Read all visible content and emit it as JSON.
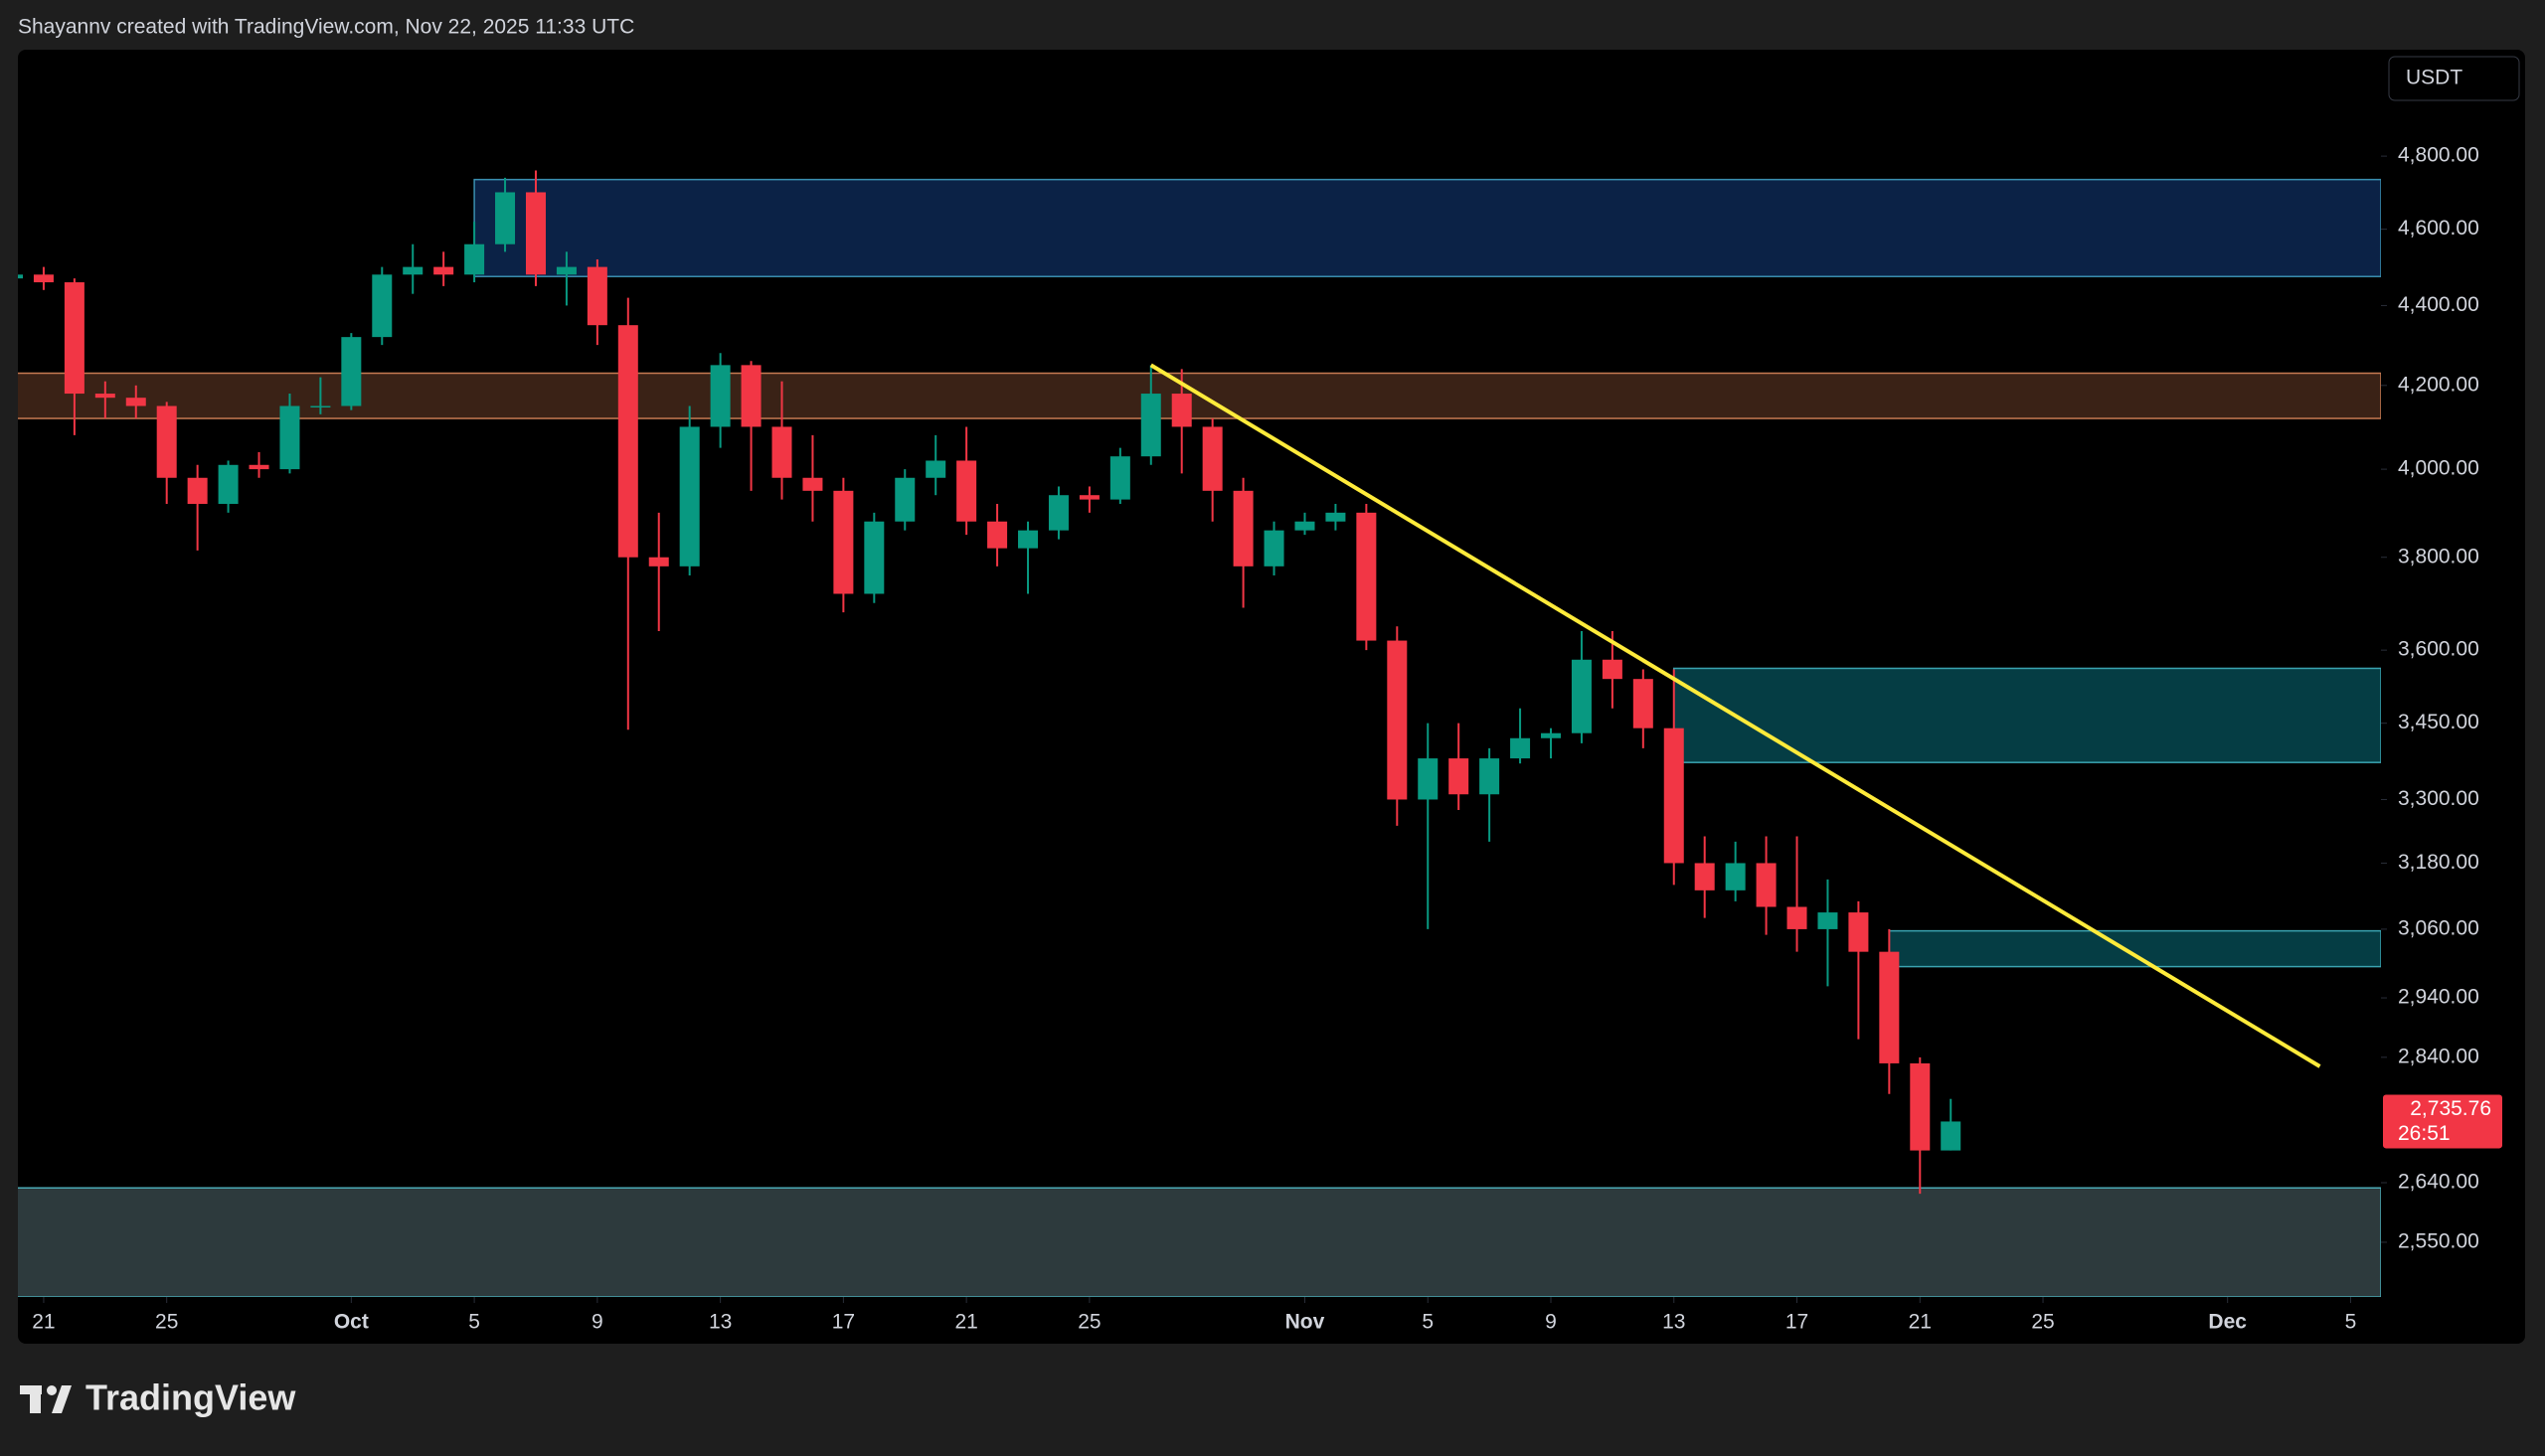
{
  "header": {
    "attribution": "Shayannv created with TradingView.com, Nov 22, 2025 11:33 UTC"
  },
  "footer": {
    "logo": "TradingView"
  },
  "chart_data": {
    "type": "candlestick",
    "currency": "USDT",
    "log_scale": true,
    "up_color": "#089981",
    "down_color": "#f23645",
    "x": [
      "Sep 20",
      "Sep 21",
      "Sep 22",
      "Sep 23",
      "Sep 24",
      "Sep 25",
      "Sep 26",
      "Sep 27",
      "Sep 28",
      "Sep 29",
      "Sep 30",
      "Oct 1",
      "Oct 2",
      "Oct 3",
      "Oct 4",
      "Oct 5",
      "Oct 6",
      "Oct 7",
      "Oct 8",
      "Oct 9",
      "Oct 10",
      "Oct 11",
      "Oct 12",
      "Oct 13",
      "Oct 14",
      "Oct 15",
      "Oct 16",
      "Oct 17",
      "Oct 18",
      "Oct 19",
      "Oct 20",
      "Oct 21",
      "Oct 22",
      "Oct 23",
      "Oct 24",
      "Oct 25",
      "Oct 26",
      "Oct 27",
      "Oct 28",
      "Oct 29",
      "Oct 30",
      "Oct 31",
      "Nov 1",
      "Nov 2",
      "Nov 3",
      "Nov 4",
      "Nov 5",
      "Nov 6",
      "Nov 7",
      "Nov 8",
      "Nov 9",
      "Nov 10",
      "Nov 11",
      "Nov 12",
      "Nov 13",
      "Nov 14",
      "Nov 15",
      "Nov 16",
      "Nov 17",
      "Nov 18",
      "Nov 19",
      "Nov 20",
      "Nov 21",
      "Nov 22",
      "Nov 23",
      "Nov 24",
      "Nov 25",
      "Nov 26",
      "Nov 27",
      "Nov 28",
      "Nov 29",
      "Nov 30",
      "Dec 1",
      "Dec 2",
      "Dec 3",
      "Dec 4",
      "Dec 5",
      "Dec 6"
    ],
    "open": [
      4470,
      4480,
      4460,
      4180,
      4170,
      4150,
      3980,
      3920,
      4010,
      4000,
      4150,
      4150,
      4320,
      4480,
      4500,
      4480,
      4560,
      4700,
      4480,
      4500,
      4350,
      3800,
      3780,
      4100,
      4250,
      4100,
      3980,
      3950,
      3720,
      3880,
      3980,
      4020,
      3880,
      3820,
      3860,
      3940,
      3930,
      4030,
      4180,
      4100,
      3950,
      3780,
      3860,
      3880,
      3900,
      3620,
      3300,
      3380,
      3310,
      3380,
      3420,
      3430,
      3580,
      3540,
      3440,
      3180,
      3130,
      3180,
      3100,
      3060,
      3090,
      3020,
      2830,
      2690,
      null,
      null,
      null,
      null,
      null,
      null,
      null,
      null,
      null,
      null,
      null,
      null,
      null,
      null
    ],
    "high": [
      4500,
      4500,
      4470,
      4210,
      4200,
      4160,
      4010,
      4020,
      4040,
      4180,
      4220,
      4330,
      4500,
      4560,
      4540,
      4620,
      4740,
      4760,
      4540,
      4520,
      4420,
      3900,
      4150,
      4280,
      4260,
      4210,
      4080,
      3980,
      3900,
      4000,
      4080,
      4100,
      3920,
      3880,
      3960,
      3960,
      4050,
      4250,
      4240,
      4120,
      3980,
      3880,
      3900,
      3920,
      3920,
      3650,
      3450,
      3450,
      3400,
      3480,
      3440,
      3640,
      3640,
      3560,
      3560,
      3230,
      3220,
      3230,
      3230,
      3150,
      3110,
      3060,
      2840,
      2772,
      null,
      null,
      null,
      null,
      null,
      null,
      null,
      null,
      null,
      null,
      null,
      null,
      null,
      null
    ],
    "low": [
      4450,
      4440,
      4080,
      4120,
      4120,
      3920,
      3815,
      3900,
      3980,
      3990,
      4130,
      4140,
      4300,
      4430,
      4450,
      4460,
      4540,
      4450,
      4400,
      4300,
      3437,
      3640,
      3760,
      4050,
      3950,
      3930,
      3880,
      3680,
      3700,
      3860,
      3940,
      3850,
      3780,
      3720,
      3840,
      3900,
      3920,
      4010,
      3990,
      3880,
      3690,
      3760,
      3850,
      3860,
      3600,
      3250,
      3060,
      3280,
      3220,
      3370,
      3380,
      3410,
      3480,
      3400,
      3140,
      3080,
      3110,
      3050,
      3020,
      2960,
      2870,
      2780,
      2623,
      2690,
      null,
      null,
      null,
      null,
      null,
      null,
      null,
      null,
      null,
      null,
      null,
      null,
      null,
      null
    ],
    "close": [
      4480,
      4460,
      4180,
      4170,
      4150,
      3980,
      3920,
      4010,
      4000,
      4150,
      4150,
      4320,
      4480,
      4500,
      4480,
      4560,
      4700,
      4480,
      4500,
      4350,
      3800,
      3780,
      4100,
      4250,
      4100,
      3980,
      3950,
      3720,
      3880,
      3980,
      4020,
      3880,
      3820,
      3860,
      3940,
      3930,
      4030,
      4180,
      4100,
      3950,
      3780,
      3860,
      3880,
      3900,
      3620,
      3300,
      3380,
      3310,
      3380,
      3420,
      3430,
      3580,
      3540,
      3440,
      3180,
      3130,
      3180,
      3100,
      3060,
      3090,
      3020,
      2830,
      2690,
      2735.76,
      null,
      null,
      null,
      null,
      null,
      null,
      null,
      null,
      null,
      null,
      null,
      null,
      null,
      null
    ],
    "ylim": [
      2470,
      5104
    ],
    "yticks": [
      {
        "value": 4800,
        "label": "4,800.00"
      },
      {
        "value": 4600,
        "label": "4,600.00"
      },
      {
        "value": 4400,
        "label": "4,400.00"
      },
      {
        "value": 4200,
        "label": "4,200.00"
      },
      {
        "value": 4000,
        "label": "4,000.00"
      },
      {
        "value": 3800,
        "label": "3,800.00"
      },
      {
        "value": 3600,
        "label": "3,600.00"
      },
      {
        "value": 3450,
        "label": "3,450.00"
      },
      {
        "value": 3300,
        "label": "3,300.00"
      },
      {
        "value": 3180,
        "label": "3,180.00"
      },
      {
        "value": 3060,
        "label": "3,060.00"
      },
      {
        "value": 2940,
        "label": "2,940.00"
      },
      {
        "value": 2840,
        "label": "2,840.00"
      },
      {
        "value": 2640,
        "label": "2,640.00"
      },
      {
        "value": 2550,
        "label": "2,550.00"
      }
    ],
    "xticks": [
      {
        "value": "Sep 21",
        "label": "21"
      },
      {
        "value": "Sep 25",
        "label": "25"
      },
      {
        "value": "Oct 1",
        "label": "Oct"
      },
      {
        "value": "Oct 5",
        "label": "5"
      },
      {
        "value": "Oct 9",
        "label": "9"
      },
      {
        "value": "Oct 13",
        "label": "13"
      },
      {
        "value": "Oct 17",
        "label": "17"
      },
      {
        "value": "Oct 21",
        "label": "21"
      },
      {
        "value": "Oct 25",
        "label": "25"
      },
      {
        "value": "Nov 1",
        "label": "Nov"
      },
      {
        "value": "Nov 5",
        "label": "5"
      },
      {
        "value": "Nov 9",
        "label": "9"
      },
      {
        "value": "Nov 13",
        "label": "13"
      },
      {
        "value": "Nov 17",
        "label": "17"
      },
      {
        "value": "Nov 21",
        "label": "21"
      },
      {
        "value": "Nov 25",
        "label": "25"
      },
      {
        "value": "Dec 1",
        "label": "Dec"
      },
      {
        "value": "Dec 5",
        "label": "5"
      }
    ],
    "last_price": {
      "value": 2735.76,
      "label": "2,735.76",
      "countdown": "26:51",
      "color": "#f23645"
    },
    "zones": [
      {
        "x0": "Oct 5",
        "y": [
          4475,
          4735
        ],
        "color": "#0b2246",
        "border": "#3a8fb0"
      },
      {
        "x0": "Sep 20",
        "y": [
          4120,
          4230
        ],
        "color": "#3a2216",
        "border": "#c77a52"
      },
      {
        "x0": "Nov 13",
        "y": [
          3372,
          3562
        ],
        "color": "#053d44",
        "border": "#3aa3b0"
      },
      {
        "x0": "Nov 20",
        "y": [
          2994,
          3057
        ],
        "color": "#053d44",
        "border": "#3aa3b0"
      },
      {
        "x0": "Sep 20",
        "y": [
          2470,
          2632
        ],
        "color": "#2d3a3d",
        "border": "#4aa9b5"
      }
    ],
    "trendline": {
      "x": [
        "Oct 27",
        "Dec 4"
      ],
      "y": [
        4250,
        2825
      ],
      "color": "#ffeb3b"
    }
  }
}
